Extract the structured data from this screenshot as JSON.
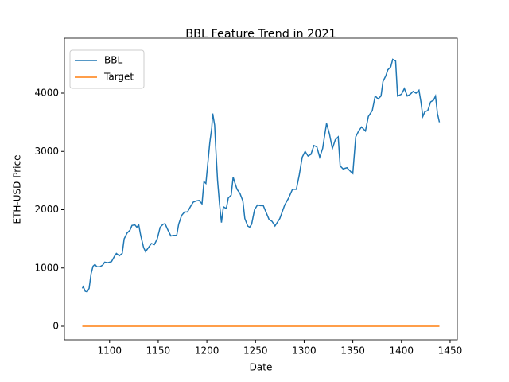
{
  "chart_data": {
    "type": "line",
    "title": "BBL Feature Trend in 2021",
    "x_label": "Date",
    "y_label": "ETH-USD Price",
    "x": [
      1072,
      1073,
      1075,
      1077,
      1079,
      1081,
      1083,
      1085,
      1087,
      1090,
      1093,
      1095,
      1098,
      1102,
      1105,
      1107,
      1110,
      1113,
      1115,
      1118,
      1121,
      1123,
      1126,
      1128,
      1130,
      1132,
      1135,
      1137,
      1140,
      1143,
      1146,
      1149,
      1152,
      1155,
      1157,
      1160,
      1163,
      1166,
      1169,
      1171,
      1174,
      1177,
      1180,
      1183,
      1186,
      1189,
      1192,
      1195,
      1197,
      1199,
      1201,
      1203,
      1205,
      1206,
      1208,
      1209,
      1211,
      1213,
      1215,
      1217,
      1220,
      1222,
      1225,
      1227,
      1229,
      1231,
      1234,
      1237,
      1239,
      1242,
      1244,
      1246,
      1249,
      1252,
      1255,
      1258,
      1261,
      1264,
      1267,
      1270,
      1275,
      1280,
      1284,
      1288,
      1292,
      1295,
      1298,
      1301,
      1304,
      1307,
      1310,
      1313,
      1316,
      1319,
      1323,
      1326,
      1329,
      1332,
      1335,
      1337,
      1340,
      1344,
      1348,
      1350,
      1353,
      1356,
      1359,
      1363,
      1366,
      1370,
      1373,
      1376,
      1379,
      1381,
      1384,
      1386,
      1389,
      1391,
      1394,
      1396,
      1400,
      1403,
      1406,
      1409,
      1412,
      1415,
      1418,
      1420,
      1422,
      1424,
      1427,
      1430,
      1433,
      1435,
      1437,
      1439
    ],
    "series": [
      {
        "name": "BBL",
        "color": "#1f77b4",
        "values": [
          650,
          680,
          600,
          590,
          650,
          900,
          1030,
          1060,
          1020,
          1020,
          1050,
          1100,
          1090,
          1110,
          1200,
          1250,
          1210,
          1250,
          1500,
          1600,
          1650,
          1730,
          1740,
          1700,
          1740,
          1560,
          1350,
          1280,
          1350,
          1420,
          1400,
          1500,
          1700,
          1750,
          1760,
          1650,
          1550,
          1560,
          1560,
          1750,
          1900,
          1960,
          1960,
          2050,
          2130,
          2150,
          2160,
          2100,
          2480,
          2450,
          2800,
          3150,
          3400,
          3650,
          3450,
          3100,
          2500,
          2100,
          1780,
          2050,
          2020,
          2200,
          2250,
          2560,
          2450,
          2350,
          2280,
          2150,
          1850,
          1720,
          1700,
          1750,
          2000,
          2080,
          2070,
          2070,
          1950,
          1830,
          1800,
          1720,
          1850,
          2080,
          2200,
          2350,
          2350,
          2600,
          2900,
          3000,
          2920,
          2950,
          3100,
          3080,
          2900,
          3050,
          3480,
          3300,
          3050,
          3200,
          3250,
          2750,
          2700,
          2720,
          2650,
          2620,
          3250,
          3350,
          3420,
          3350,
          3600,
          3700,
          3950,
          3900,
          3950,
          4200,
          4300,
          4400,
          4450,
          4580,
          4550,
          3950,
          3980,
          4080,
          3950,
          3980,
          4030,
          4000,
          4050,
          3850,
          3600,
          3680,
          3700,
          3850,
          3880,
          3950,
          3650,
          3500
        ]
      },
      {
        "name": "Target",
        "color": "#ff7f0e",
        "values": [
          0,
          0,
          0,
          0,
          0,
          0,
          0,
          0,
          0,
          0,
          0,
          0,
          0,
          0,
          0,
          0,
          0,
          0,
          0,
          0,
          0,
          0,
          0,
          0,
          0,
          0,
          0,
          0,
          0,
          0,
          0,
          0,
          0,
          0,
          0,
          0,
          0,
          0,
          0,
          0,
          0,
          0,
          0,
          0,
          0,
          0,
          0,
          0,
          0,
          0,
          0,
          0,
          0,
          0,
          0,
          0,
          0,
          0,
          0,
          0,
          0,
          0,
          0,
          0,
          0,
          0,
          0,
          0,
          0,
          0,
          0,
          0,
          0,
          0,
          0,
          0,
          0,
          0,
          0,
          0,
          0,
          0,
          0,
          0,
          0,
          0,
          0,
          0,
          0,
          0,
          0,
          0,
          0,
          0,
          0,
          0,
          0,
          0,
          0,
          0,
          0,
          0,
          0,
          0,
          0,
          0,
          0,
          0,
          0,
          0,
          0,
          0,
          0,
          0,
          0,
          0,
          0,
          0,
          0,
          0,
          0,
          0,
          0,
          0,
          0,
          0,
          0,
          0,
          0,
          0,
          0,
          0,
          0,
          0,
          0,
          0
        ]
      }
    ],
    "xlim": [
      1053.6,
      1457.4
    ],
    "xticks": [
      1100,
      1150,
      1200,
      1250,
      1300,
      1350,
      1400,
      1450
    ],
    "ylim": [
      -232,
      4942
    ],
    "yticks": [
      0,
      1000,
      2000,
      3000,
      4000
    ],
    "legend": "upper left",
    "grid": false
  }
}
